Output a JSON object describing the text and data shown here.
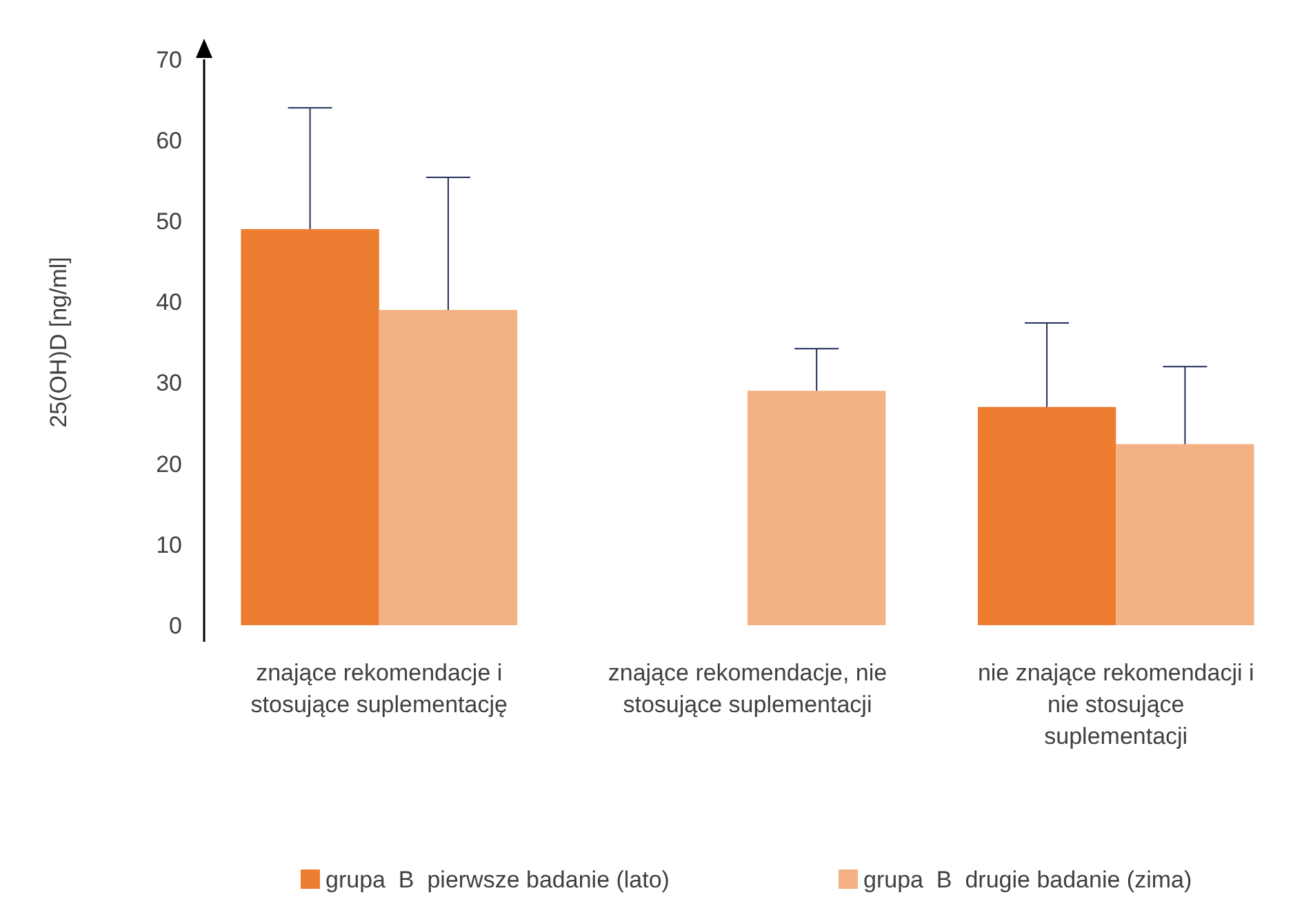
{
  "chart_data": {
    "type": "bar",
    "ylabel": "25(OH)D [ng/ml]",
    "categories": [
      "znające rekomendacje i stosujące suplementację",
      "znające rekomendacje, nie stosujące suplementacji",
      "nie znające rekomendacji i nie stosujące suplementacji"
    ],
    "series": [
      {
        "name": "grupa  B  pierwsze badanie (lato)",
        "color": "#ed7d31",
        "values": [
          49,
          null,
          27
        ],
        "errors": [
          [
            49,
            64
          ],
          null,
          [
            27,
            37.4
          ]
        ]
      },
      {
        "name": "grupa  B  drugie badanie (zima)",
        "color": "#f4b183",
        "values": [
          39,
          29,
          22.4
        ],
        "errors": [
          [
            39,
            55.4
          ],
          [
            29,
            34.2
          ],
          [
            22.4,
            32
          ]
        ]
      }
    ],
    "ylim": [
      0,
      70
    ],
    "yticks": [
      0,
      10,
      20,
      30,
      40,
      50,
      60,
      70
    ],
    "grid": false,
    "legend": "bottom"
  }
}
